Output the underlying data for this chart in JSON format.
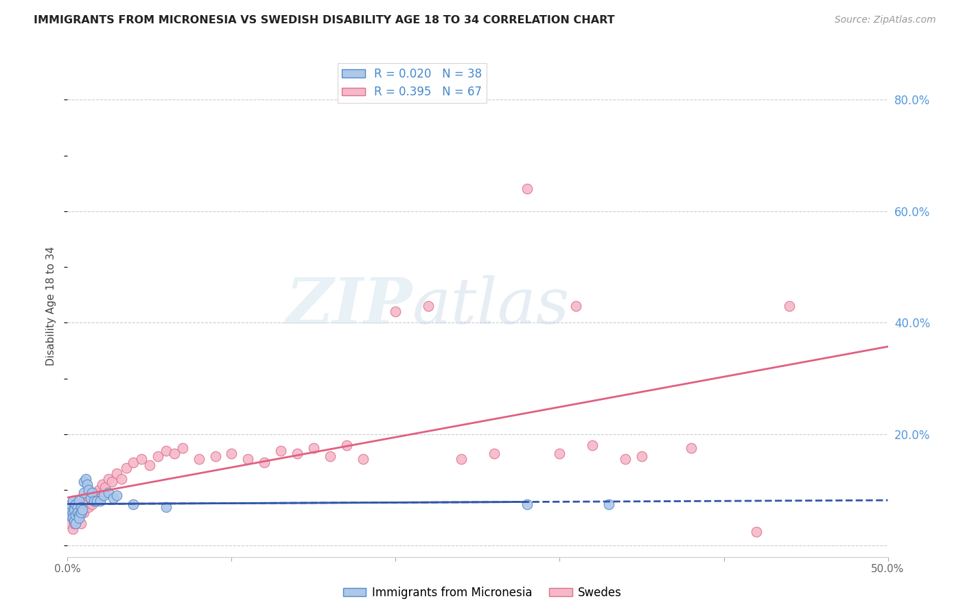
{
  "title": "IMMIGRANTS FROM MICRONESIA VS SWEDISH DISABILITY AGE 18 TO 34 CORRELATION CHART",
  "source": "Source: ZipAtlas.com",
  "ylabel_label": "Disability Age 18 to 34",
  "xlim": [
    0.0,
    0.5
  ],
  "ylim": [
    -0.02,
    0.88
  ],
  "series1_color": "#adc8e8",
  "series1_edge": "#5588cc",
  "series2_color": "#f5b8c8",
  "series2_edge": "#e07090",
  "trendline1_color": "#3355aa",
  "trendline2_color": "#e06080",
  "grid_color": "#cccccc",
  "background_color": "#ffffff",
  "watermark_zip": "ZIP",
  "watermark_atlas": "atlas",
  "series1_x": [
    0.001,
    0.002,
    0.002,
    0.003,
    0.003,
    0.003,
    0.004,
    0.004,
    0.004,
    0.005,
    0.005,
    0.005,
    0.006,
    0.006,
    0.007,
    0.007,
    0.007,
    0.008,
    0.008,
    0.009,
    0.01,
    0.01,
    0.011,
    0.012,
    0.013,
    0.014,
    0.015,
    0.016,
    0.018,
    0.02,
    0.022,
    0.025,
    0.028,
    0.03,
    0.04,
    0.06,
    0.28,
    0.33
  ],
  "series1_y": [
    0.055,
    0.065,
    0.075,
    0.06,
    0.08,
    0.05,
    0.07,
    0.065,
    0.045,
    0.075,
    0.055,
    0.04,
    0.07,
    0.06,
    0.055,
    0.08,
    0.05,
    0.07,
    0.06,
    0.065,
    0.095,
    0.115,
    0.12,
    0.11,
    0.1,
    0.085,
    0.095,
    0.08,
    0.08,
    0.08,
    0.09,
    0.095,
    0.085,
    0.09,
    0.075,
    0.07,
    0.075,
    0.075
  ],
  "series2_x": [
    0.001,
    0.002,
    0.003,
    0.003,
    0.004,
    0.004,
    0.005,
    0.005,
    0.006,
    0.006,
    0.007,
    0.007,
    0.008,
    0.008,
    0.009,
    0.009,
    0.01,
    0.01,
    0.011,
    0.012,
    0.013,
    0.014,
    0.015,
    0.016,
    0.017,
    0.018,
    0.019,
    0.02,
    0.021,
    0.022,
    0.023,
    0.025,
    0.027,
    0.03,
    0.033,
    0.036,
    0.04,
    0.045,
    0.05,
    0.055,
    0.06,
    0.065,
    0.07,
    0.08,
    0.09,
    0.1,
    0.11,
    0.12,
    0.13,
    0.14,
    0.15,
    0.16,
    0.17,
    0.18,
    0.2,
    0.22,
    0.24,
    0.26,
    0.28,
    0.3,
    0.31,
    0.32,
    0.34,
    0.35,
    0.38,
    0.42,
    0.44
  ],
  "series2_y": [
    0.04,
    0.06,
    0.05,
    0.03,
    0.055,
    0.04,
    0.06,
    0.045,
    0.075,
    0.05,
    0.065,
    0.055,
    0.07,
    0.04,
    0.08,
    0.06,
    0.075,
    0.06,
    0.08,
    0.09,
    0.07,
    0.085,
    0.075,
    0.095,
    0.08,
    0.09,
    0.1,
    0.085,
    0.11,
    0.095,
    0.105,
    0.12,
    0.115,
    0.13,
    0.12,
    0.14,
    0.15,
    0.155,
    0.145,
    0.16,
    0.17,
    0.165,
    0.175,
    0.155,
    0.16,
    0.165,
    0.155,
    0.15,
    0.17,
    0.165,
    0.175,
    0.16,
    0.18,
    0.155,
    0.42,
    0.43,
    0.155,
    0.165,
    0.64,
    0.165,
    0.43,
    0.18,
    0.155,
    0.16,
    0.175,
    0.025,
    0.43
  ]
}
